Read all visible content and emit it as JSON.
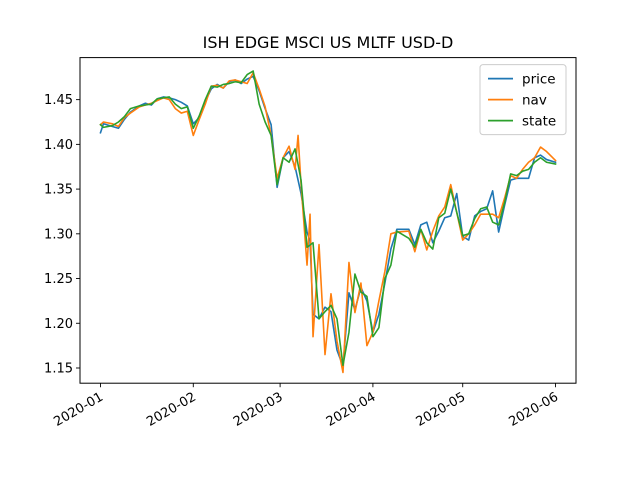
{
  "chart_data": {
    "type": "line",
    "title": "ISH EDGE MSCI US MLTF USD-D",
    "xlabel": "",
    "ylabel": "",
    "x_axis": "date",
    "xlim": [
      "2020-01-01",
      "2020-06-01"
    ],
    "ylim": [
      1.133,
      1.497
    ],
    "x_ticks": [
      "2020-01",
      "2020-02",
      "2020-03",
      "2020-04",
      "2020-05",
      "2020-06"
    ],
    "x_tick_dates": [
      "2020-01-01",
      "2020-02-01",
      "2020-03-01",
      "2020-04-01",
      "2020-05-01",
      "2020-06-01"
    ],
    "y_ticks": [
      1.15,
      1.2,
      1.25,
      1.3,
      1.35,
      1.4,
      1.45
    ],
    "y_tick_labels": [
      "1.15",
      "1.20",
      "1.25",
      "1.30",
      "1.35",
      "1.40",
      "1.45"
    ],
    "legend_position": "top-right",
    "grid": false,
    "series": [
      {
        "name": "price",
        "color": "#1f77b4",
        "points": [
          [
            "2020-01-01",
            1.413
          ],
          [
            "2020-01-02",
            1.423
          ],
          [
            "2020-01-05",
            1.42
          ],
          [
            "2020-01-07",
            1.418
          ],
          [
            "2020-01-09",
            1.428
          ],
          [
            "2020-01-11",
            1.436
          ],
          [
            "2020-01-14",
            1.443
          ],
          [
            "2020-01-16",
            1.446
          ],
          [
            "2020-01-18",
            1.444
          ],
          [
            "2020-01-20",
            1.451
          ],
          [
            "2020-01-22",
            1.453
          ],
          [
            "2020-01-24",
            1.452
          ],
          [
            "2020-01-26",
            1.45
          ],
          [
            "2020-01-28",
            1.447
          ],
          [
            "2020-01-30",
            1.443
          ],
          [
            "2020-02-01",
            1.423
          ],
          [
            "2020-02-03",
            1.43
          ],
          [
            "2020-02-05",
            1.448
          ],
          [
            "2020-02-07",
            1.462
          ],
          [
            "2020-02-09",
            1.467
          ],
          [
            "2020-02-11",
            1.463
          ],
          [
            "2020-02-13",
            1.47
          ],
          [
            "2020-02-15",
            1.472
          ],
          [
            "2020-02-17",
            1.468
          ],
          [
            "2020-02-19",
            1.473
          ],
          [
            "2020-02-21",
            1.476
          ],
          [
            "2020-02-23",
            1.46
          ],
          [
            "2020-02-25",
            1.44
          ],
          [
            "2020-02-27",
            1.422
          ],
          [
            "2020-02-29",
            1.352
          ],
          [
            "2020-03-02",
            1.385
          ],
          [
            "2020-03-04",
            1.392
          ],
          [
            "2020-03-06",
            1.375
          ],
          [
            "2020-03-08",
            1.345
          ],
          [
            "2020-03-10",
            1.302
          ],
          [
            "2020-03-11",
            1.292
          ],
          [
            "2020-03-12",
            1.21
          ],
          [
            "2020-03-14",
            1.205
          ],
          [
            "2020-03-16",
            1.218
          ],
          [
            "2020-03-18",
            1.213
          ],
          [
            "2020-03-20",
            1.17
          ],
          [
            "2020-03-22",
            1.152
          ],
          [
            "2020-03-24",
            1.234
          ],
          [
            "2020-03-26",
            1.215
          ],
          [
            "2020-03-28",
            1.24
          ],
          [
            "2020-03-30",
            1.225
          ],
          [
            "2020-04-01",
            1.19
          ],
          [
            "2020-04-03",
            1.21
          ],
          [
            "2020-04-05",
            1.245
          ],
          [
            "2020-04-07",
            1.283
          ],
          [
            "2020-04-09",
            1.305
          ],
          [
            "2020-04-13",
            1.305
          ],
          [
            "2020-04-15",
            1.288
          ],
          [
            "2020-04-17",
            1.31
          ],
          [
            "2020-04-19",
            1.313
          ],
          [
            "2020-04-21",
            1.29
          ],
          [
            "2020-04-23",
            1.303
          ],
          [
            "2020-04-25",
            1.318
          ],
          [
            "2020-04-27",
            1.32
          ],
          [
            "2020-04-29",
            1.345
          ],
          [
            "2020-05-01",
            1.297
          ],
          [
            "2020-05-03",
            1.293
          ],
          [
            "2020-05-05",
            1.32
          ],
          [
            "2020-05-07",
            1.325
          ],
          [
            "2020-05-09",
            1.328
          ],
          [
            "2020-05-11",
            1.348
          ],
          [
            "2020-05-13",
            1.302
          ],
          [
            "2020-05-15",
            1.332
          ],
          [
            "2020-05-17",
            1.36
          ],
          [
            "2020-05-19",
            1.362
          ],
          [
            "2020-05-21",
            1.362
          ],
          [
            "2020-05-23",
            1.362
          ],
          [
            "2020-05-25",
            1.385
          ],
          [
            "2020-05-27",
            1.388
          ],
          [
            "2020-05-29",
            1.383
          ],
          [
            "2020-06-01",
            1.38
          ]
        ]
      },
      {
        "name": "nav",
        "color": "#ff7f0e",
        "points": [
          [
            "2020-01-01",
            1.422
          ],
          [
            "2020-01-02",
            1.425
          ],
          [
            "2020-01-05",
            1.423
          ],
          [
            "2020-01-07",
            1.42
          ],
          [
            "2020-01-09",
            1.43
          ],
          [
            "2020-01-11",
            1.435
          ],
          [
            "2020-01-14",
            1.442
          ],
          [
            "2020-01-16",
            1.444
          ],
          [
            "2020-01-18",
            1.446
          ],
          [
            "2020-01-20",
            1.449
          ],
          [
            "2020-01-22",
            1.452
          ],
          [
            "2020-01-24",
            1.45
          ],
          [
            "2020-01-26",
            1.44
          ],
          [
            "2020-01-28",
            1.435
          ],
          [
            "2020-01-30",
            1.437
          ],
          [
            "2020-02-01",
            1.41
          ],
          [
            "2020-02-03",
            1.428
          ],
          [
            "2020-02-05",
            1.445
          ],
          [
            "2020-02-07",
            1.465
          ],
          [
            "2020-02-09",
            1.466
          ],
          [
            "2020-02-11",
            1.463
          ],
          [
            "2020-02-13",
            1.471
          ],
          [
            "2020-02-15",
            1.472
          ],
          [
            "2020-02-17",
            1.47
          ],
          [
            "2020-02-19",
            1.468
          ],
          [
            "2020-02-21",
            1.48
          ],
          [
            "2020-02-23",
            1.462
          ],
          [
            "2020-02-25",
            1.442
          ],
          [
            "2020-02-27",
            1.41
          ],
          [
            "2020-02-29",
            1.362
          ],
          [
            "2020-03-02",
            1.385
          ],
          [
            "2020-03-04",
            1.398
          ],
          [
            "2020-03-06",
            1.372
          ],
          [
            "2020-03-07",
            1.41
          ],
          [
            "2020-03-08",
            1.355
          ],
          [
            "2020-03-10",
            1.265
          ],
          [
            "2020-03-11",
            1.322
          ],
          [
            "2020-03-12",
            1.185
          ],
          [
            "2020-03-14",
            1.288
          ],
          [
            "2020-03-16",
            1.165
          ],
          [
            "2020-03-18",
            1.233
          ],
          [
            "2020-03-20",
            1.18
          ],
          [
            "2020-03-22",
            1.145
          ],
          [
            "2020-03-24",
            1.268
          ],
          [
            "2020-03-26",
            1.212
          ],
          [
            "2020-03-28",
            1.245
          ],
          [
            "2020-03-30",
            1.175
          ],
          [
            "2020-04-01",
            1.19
          ],
          [
            "2020-04-03",
            1.225
          ],
          [
            "2020-04-05",
            1.258
          ],
          [
            "2020-04-07",
            1.3
          ],
          [
            "2020-04-09",
            1.302
          ],
          [
            "2020-04-13",
            1.303
          ],
          [
            "2020-04-15",
            1.28
          ],
          [
            "2020-04-17",
            1.305
          ],
          [
            "2020-04-19",
            1.282
          ],
          [
            "2020-04-21",
            1.303
          ],
          [
            "2020-04-23",
            1.32
          ],
          [
            "2020-04-25",
            1.33
          ],
          [
            "2020-04-27",
            1.355
          ],
          [
            "2020-05-01",
            1.293
          ],
          [
            "2020-05-03",
            1.3
          ],
          [
            "2020-05-05",
            1.31
          ],
          [
            "2020-05-07",
            1.322
          ],
          [
            "2020-05-09",
            1.322
          ],
          [
            "2020-05-11",
            1.322
          ],
          [
            "2020-05-13",
            1.318
          ],
          [
            "2020-05-15",
            1.34
          ],
          [
            "2020-05-17",
            1.365
          ],
          [
            "2020-05-19",
            1.362
          ],
          [
            "2020-05-21",
            1.372
          ],
          [
            "2020-05-23",
            1.38
          ],
          [
            "2020-05-25",
            1.385
          ],
          [
            "2020-05-27",
            1.397
          ],
          [
            "2020-05-29",
            1.392
          ],
          [
            "2020-06-01",
            1.382
          ]
        ]
      },
      {
        "name": "state",
        "color": "#2ca02c",
        "points": [
          [
            "2020-01-01",
            1.422
          ],
          [
            "2020-01-02",
            1.419
          ],
          [
            "2020-01-05",
            1.421
          ],
          [
            "2020-01-07",
            1.425
          ],
          [
            "2020-01-09",
            1.431
          ],
          [
            "2020-01-11",
            1.44
          ],
          [
            "2020-01-14",
            1.443
          ],
          [
            "2020-01-16",
            1.444
          ],
          [
            "2020-01-18",
            1.445
          ],
          [
            "2020-01-20",
            1.451
          ],
          [
            "2020-01-22",
            1.452
          ],
          [
            "2020-01-24",
            1.453
          ],
          [
            "2020-01-26",
            1.445
          ],
          [
            "2020-01-28",
            1.44
          ],
          [
            "2020-01-30",
            1.442
          ],
          [
            "2020-02-01",
            1.418
          ],
          [
            "2020-02-03",
            1.432
          ],
          [
            "2020-02-05",
            1.45
          ],
          [
            "2020-02-07",
            1.465
          ],
          [
            "2020-02-09",
            1.464
          ],
          [
            "2020-02-11",
            1.467
          ],
          [
            "2020-02-13",
            1.468
          ],
          [
            "2020-02-15",
            1.47
          ],
          [
            "2020-02-17",
            1.469
          ],
          [
            "2020-02-19",
            1.478
          ],
          [
            "2020-02-21",
            1.482
          ],
          [
            "2020-02-23",
            1.445
          ],
          [
            "2020-02-25",
            1.425
          ],
          [
            "2020-02-27",
            1.41
          ],
          [
            "2020-02-29",
            1.355
          ],
          [
            "2020-03-02",
            1.385
          ],
          [
            "2020-03-04",
            1.38
          ],
          [
            "2020-03-06",
            1.395
          ],
          [
            "2020-03-08",
            1.36
          ],
          [
            "2020-03-10",
            1.285
          ],
          [
            "2020-03-12",
            1.29
          ],
          [
            "2020-03-14",
            1.205
          ],
          [
            "2020-03-16",
            1.213
          ],
          [
            "2020-03-18",
            1.22
          ],
          [
            "2020-03-20",
            1.205
          ],
          [
            "2020-03-22",
            1.153
          ],
          [
            "2020-03-24",
            1.19
          ],
          [
            "2020-03-26",
            1.255
          ],
          [
            "2020-03-28",
            1.235
          ],
          [
            "2020-03-30",
            1.23
          ],
          [
            "2020-04-01",
            1.185
          ],
          [
            "2020-04-03",
            1.195
          ],
          [
            "2020-04-05",
            1.25
          ],
          [
            "2020-04-07",
            1.265
          ],
          [
            "2020-04-09",
            1.303
          ],
          [
            "2020-04-13",
            1.295
          ],
          [
            "2020-04-15",
            1.285
          ],
          [
            "2020-04-17",
            1.305
          ],
          [
            "2020-04-19",
            1.29
          ],
          [
            "2020-04-21",
            1.283
          ],
          [
            "2020-04-23",
            1.318
          ],
          [
            "2020-04-25",
            1.323
          ],
          [
            "2020-04-27",
            1.35
          ],
          [
            "2020-05-01",
            1.298
          ],
          [
            "2020-05-03",
            1.3
          ],
          [
            "2020-05-05",
            1.317
          ],
          [
            "2020-05-07",
            1.328
          ],
          [
            "2020-05-09",
            1.33
          ],
          [
            "2020-05-11",
            1.313
          ],
          [
            "2020-05-13",
            1.31
          ],
          [
            "2020-05-15",
            1.335
          ],
          [
            "2020-05-17",
            1.367
          ],
          [
            "2020-05-19",
            1.365
          ],
          [
            "2020-05-21",
            1.37
          ],
          [
            "2020-05-23",
            1.372
          ],
          [
            "2020-05-25",
            1.38
          ],
          [
            "2020-05-27",
            1.385
          ],
          [
            "2020-05-29",
            1.38
          ],
          [
            "2020-06-01",
            1.378
          ]
        ]
      }
    ]
  }
}
